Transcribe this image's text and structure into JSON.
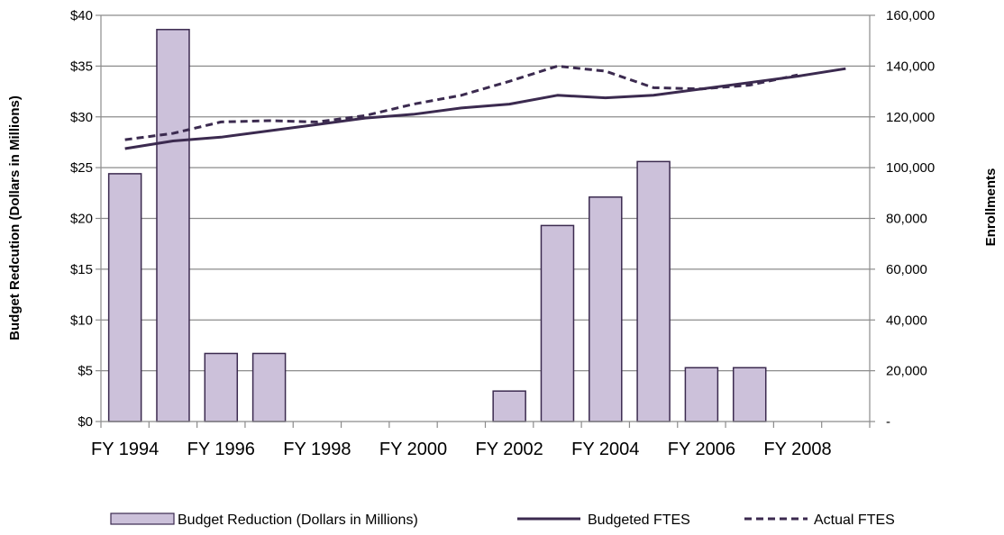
{
  "chart_data": {
    "type": "bar",
    "title": "",
    "x_tick_labels": [
      "FY 1994",
      "FY 1996",
      "FY 1998",
      "FY 2000",
      "FY 2002",
      "FY 2004",
      "FY 2006",
      "FY 2008"
    ],
    "categories": [
      "FY 1994",
      "FY 1995",
      "FY 1996",
      "FY 1997",
      "FY 1998",
      "FY 1999",
      "FY 2000",
      "FY 2001",
      "FY 2002",
      "FY 2003",
      "FY 2004",
      "FY 2005",
      "FY 2006",
      "FY 2007",
      "FY 2008",
      "FY 2009"
    ],
    "left_axis": {
      "label": "Budget Redcution (Dollars in Millions)",
      "range": [
        0,
        40
      ],
      "ticks": [
        0,
        5,
        10,
        15,
        20,
        25,
        30,
        35,
        40
      ],
      "tick_labels": [
        "$0",
        "$5",
        "$10",
        "$15",
        "$20",
        "$25",
        "$30",
        "$35",
        "$40"
      ]
    },
    "right_axis": {
      "label": "Enrollments",
      "range": [
        0,
        160000
      ],
      "ticks": [
        0,
        20000,
        40000,
        60000,
        80000,
        100000,
        120000,
        140000,
        160000
      ],
      "tick_labels": [
        "-",
        "20,000",
        "40,000",
        "60,000",
        "80,000",
        "100,000",
        "120,000",
        "140,000",
        "160,000"
      ]
    },
    "grid": true,
    "legend_position": "bottom",
    "series": [
      {
        "name": "Budget Reduction (Dollars in Millions)",
        "type": "bar",
        "axis": "left",
        "color": "#ccc1da",
        "values": [
          24.4,
          38.6,
          6.7,
          6.7,
          0,
          0,
          0,
          0,
          3.0,
          19.3,
          22.1,
          25.6,
          5.3,
          5.3,
          0,
          0
        ]
      },
      {
        "name": "Budgeted FTES",
        "type": "line",
        "axis": "right",
        "color": "#3b2a4f",
        "dashed": false,
        "values": [
          107500,
          110500,
          112000,
          114500,
          117000,
          119500,
          121000,
          123500,
          125000,
          128500,
          127500,
          128500,
          131000,
          133500,
          136000,
          139000
        ]
      },
      {
        "name": "Actual FTES",
        "type": "line",
        "axis": "right",
        "color": "#3b2a4f",
        "dashed": true,
        "values": [
          111000,
          113500,
          118000,
          118500,
          118000,
          120500,
          125000,
          128500,
          134000,
          140000,
          138000,
          131500,
          131000,
          132500,
          136500,
          null
        ]
      }
    ]
  }
}
